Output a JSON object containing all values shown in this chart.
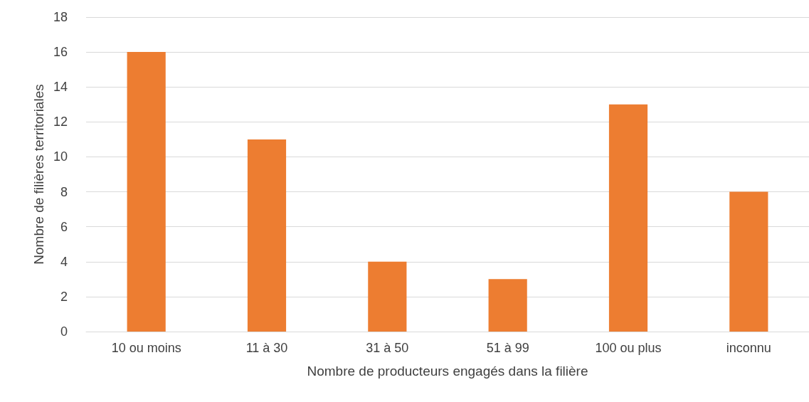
{
  "chart_data": {
    "type": "bar",
    "xlabel": "Nombre de producteurs engagés dans la filière",
    "ylabel": "Nombre de filières territoriales",
    "categories": [
      "10 ou moins",
      "11 à 30",
      "31 à 50",
      "51 à 99",
      "100 ou plus",
      "inconnu"
    ],
    "values": [
      16,
      11,
      4,
      3,
      13,
      8
    ],
    "color": "#ed7d31",
    "ylim": [
      0,
      18
    ],
    "yticks": [
      0,
      2,
      4,
      6,
      8,
      10,
      12,
      14,
      16,
      18
    ],
    "grid": "y"
  }
}
